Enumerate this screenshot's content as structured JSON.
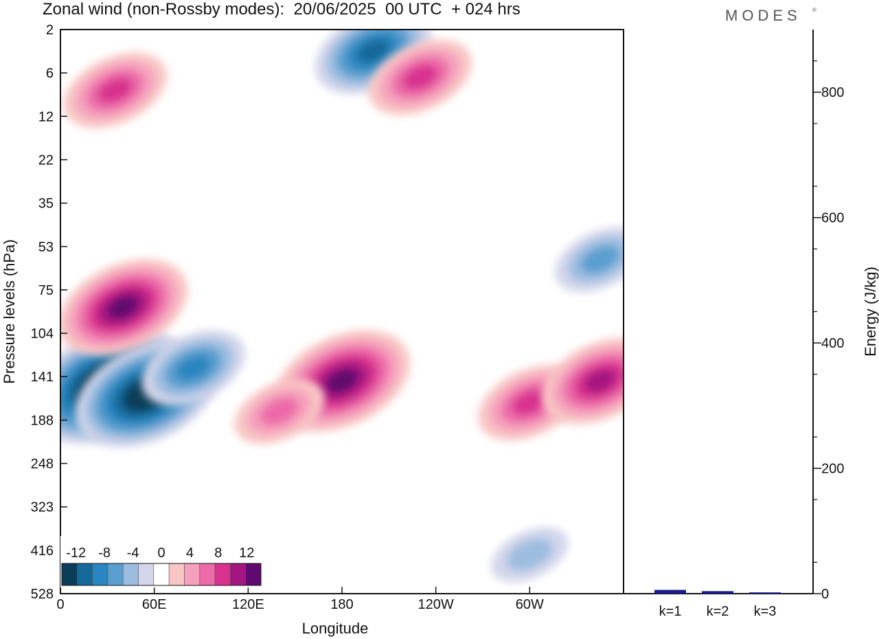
{
  "title": "Zonal wind (non-Rossby modes):  20/06/2025  00 UTC  + 024 hrs",
  "brand": "MODES",
  "brand_mark": "®",
  "chart_data": [
    {
      "type": "heatmap",
      "title": "Zonal wind (non-Rossby modes):  20/06/2025  00 UTC  + 024 hrs",
      "xlabel": "Longitude",
      "ylabel": "Pressure levels (hPa)",
      "x_ticks": [
        "0",
        "60E",
        "120E",
        "180",
        "120W",
        "60W"
      ],
      "x_tick_values": [
        0,
        60,
        120,
        180,
        240,
        300
      ],
      "xlim": [
        0,
        360
      ],
      "y_ticks": [
        "2",
        "6",
        "12",
        "22",
        "35",
        "53",
        "75",
        "104",
        "141",
        "188",
        "248",
        "323",
        "416",
        "528"
      ],
      "colorbar": {
        "labels": [
          "-12",
          "-8",
          "-4",
          "0",
          "4",
          "8",
          "12"
        ],
        "label_values": [
          -12,
          -8,
          -4,
          0,
          4,
          8,
          12
        ],
        "levels": [
          -14,
          -12,
          -10,
          -8,
          -6,
          -4,
          -2,
          2,
          4,
          6,
          8,
          10,
          12,
          14
        ],
        "colors": [
          "#0b3c58",
          "#13699a",
          "#2a86c0",
          "#5a9fcf",
          "#9dbde0",
          "#d3d6ea",
          "#ffffff",
          "#f8c6c4",
          "#f5a0bc",
          "#ec6aa8",
          "#d8318e",
          "#a51581",
          "#5e0a6e"
        ]
      },
      "features": [
        {
          "lon": 30,
          "level_index": 8.2,
          "value": -16
        },
        {
          "lon": 55,
          "level_index": 8.4,
          "value": -14
        },
        {
          "lon": 85,
          "level_index": 7.8,
          "value": -8
        },
        {
          "lon": 40,
          "level_index": 6.4,
          "value": 12
        },
        {
          "lon": 180,
          "level_index": 8.1,
          "value": 13
        },
        {
          "lon": 300,
          "level_index": 8.6,
          "value": 8
        },
        {
          "lon": 345,
          "level_index": 8.1,
          "value": 10
        },
        {
          "lon": 140,
          "level_index": 8.8,
          "value": 6
        },
        {
          "lon": 200,
          "level_index": 0.5,
          "value": -10
        },
        {
          "lon": 230,
          "level_index": 1.1,
          "value": 8
        },
        {
          "lon": 35,
          "level_index": 1.4,
          "value": 8
        },
        {
          "lon": 345,
          "level_index": 5.3,
          "value": -6
        },
        {
          "lon": 300,
          "level_index": 12.1,
          "value": -4
        }
      ]
    },
    {
      "type": "bar",
      "ylabel": "Energy (J/kg)",
      "categories": [
        "k=1",
        "k=2",
        "k=3"
      ],
      "values": [
        6,
        4,
        2
      ],
      "ylim": [
        0,
        900
      ],
      "y_ticks": [
        0,
        200,
        400,
        600,
        800
      ],
      "bar_color": "#1a1a8c"
    }
  ]
}
